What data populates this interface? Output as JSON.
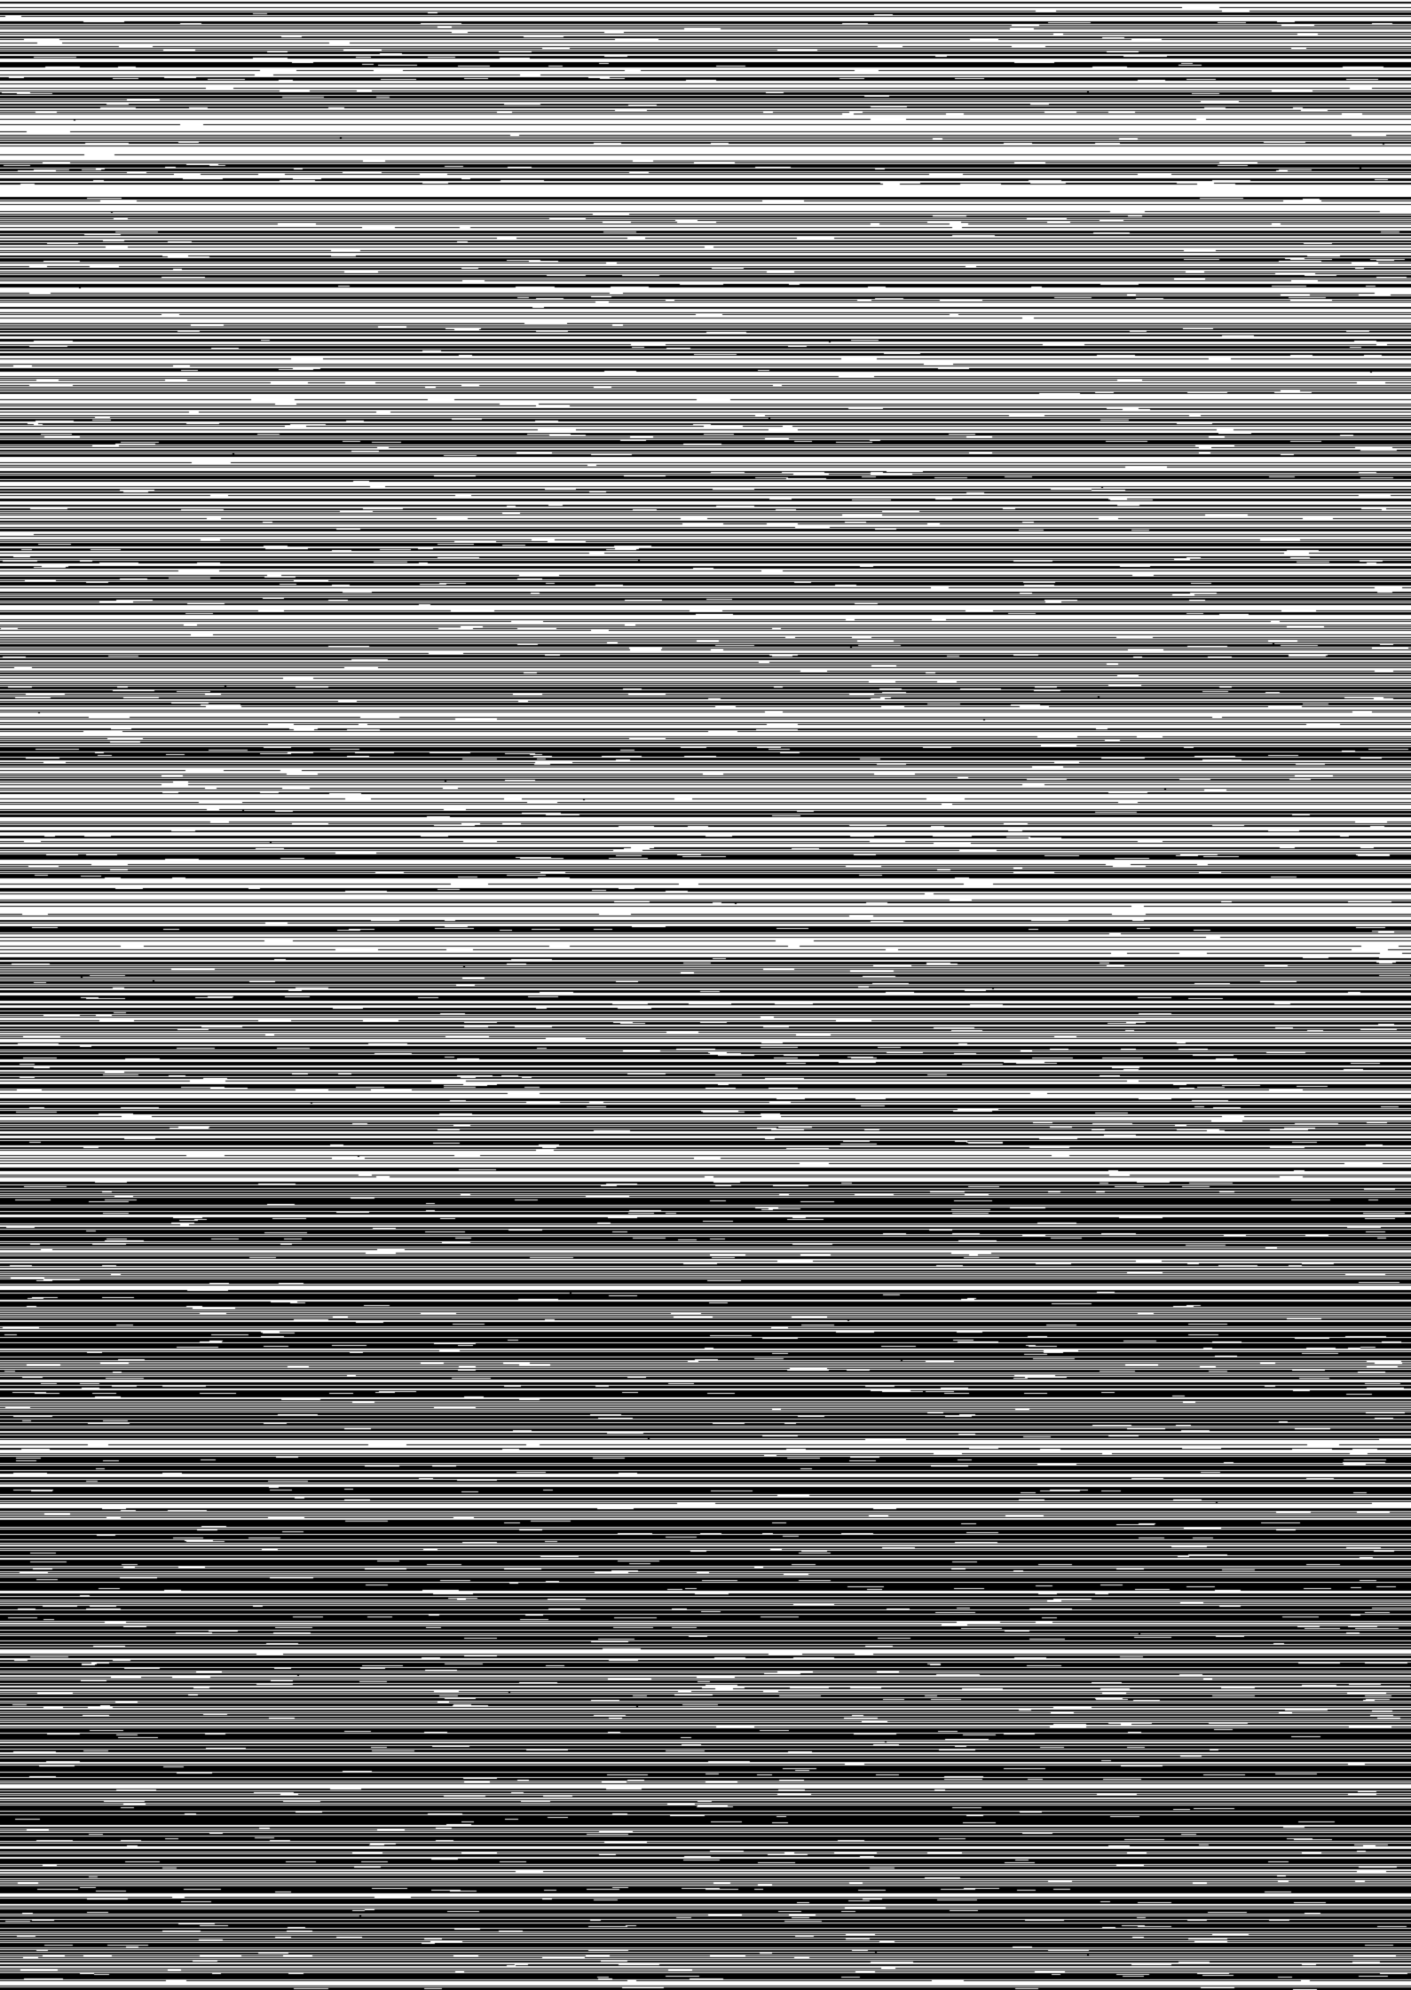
{
  "image": {
    "kind": "dense horizontal line-stripe pattern",
    "colors": {
      "background": "#ffffff",
      "line": "#000000"
    },
    "visible_text": []
  }
}
